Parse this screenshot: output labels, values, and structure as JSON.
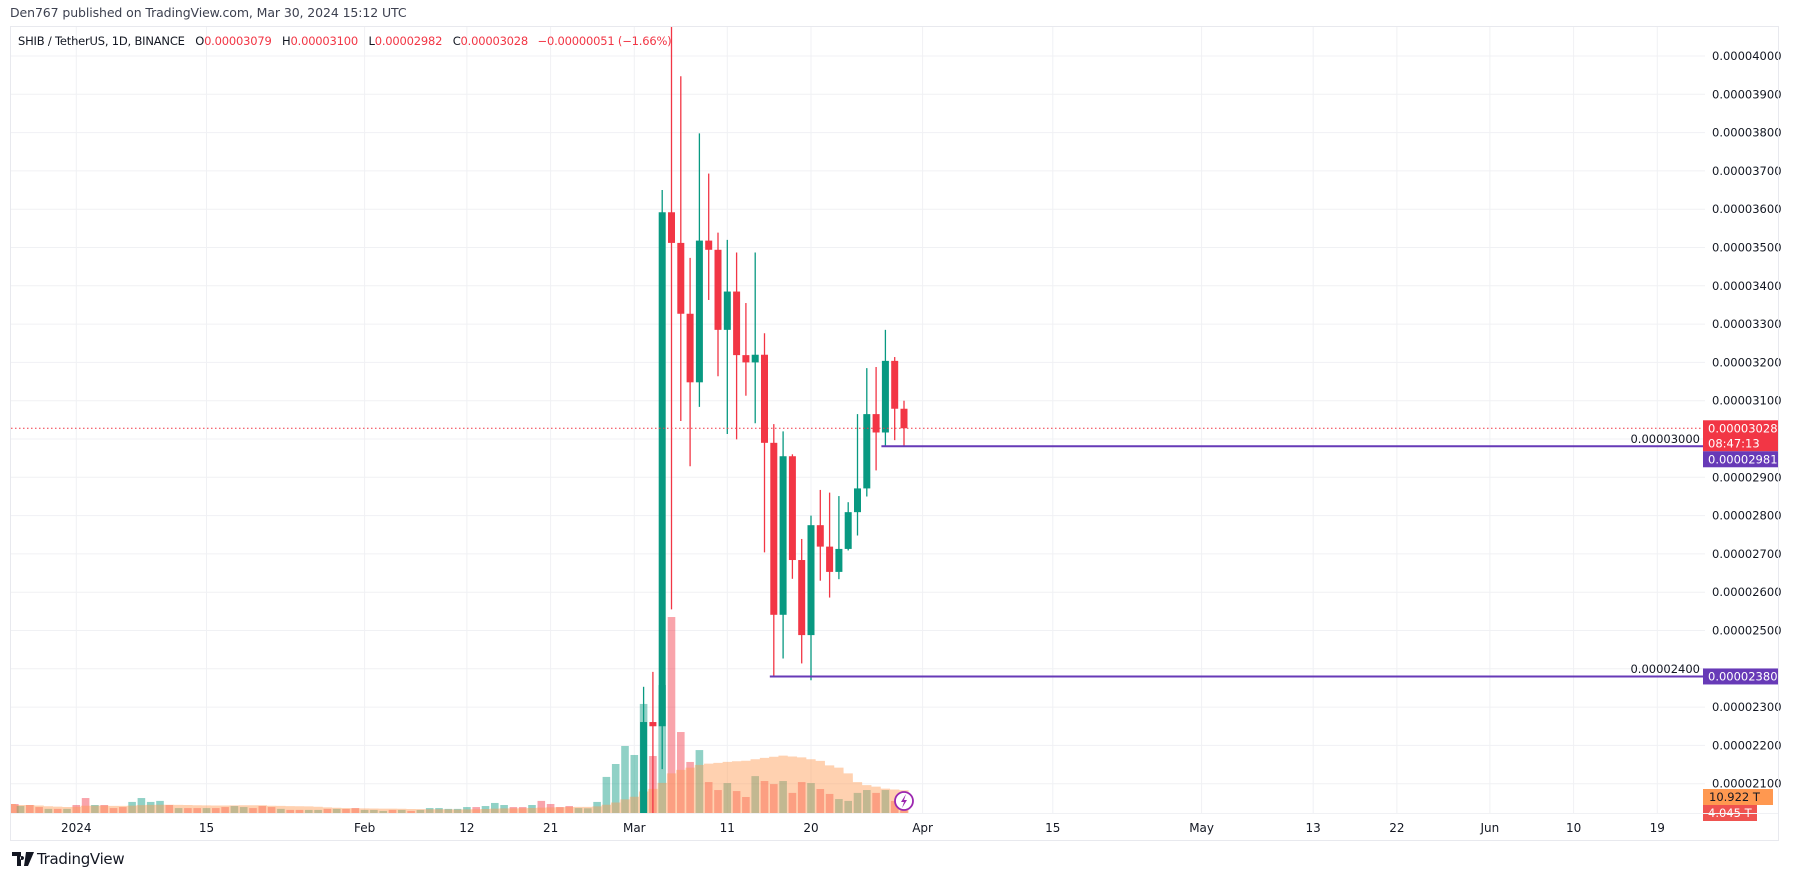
{
  "header": {
    "published": "Den767 published on TradingView.com, Mar 30, 2024 15:12 UTC"
  },
  "legend": {
    "symbol": "SHIB / TetherUS, 1D, BINANCE",
    "o_label": "O",
    "o": "0.00003079",
    "h_label": "H",
    "h": "0.00003100",
    "l_label": "L",
    "l": "0.00002982",
    "c_label": "C",
    "c": "0.00003028",
    "change": "−0.00000051 (−1.66%)"
  },
  "footer": {
    "logo_text": "TradingView"
  },
  "colors": {
    "up": "#089981",
    "down": "#f23645",
    "line": "#673ab7",
    "volume_ma": "#ff9850",
    "grid": "#f0f1f4"
  },
  "chart_data": {
    "type": "candlestick",
    "price_axis": {
      "range": [
        2.05e-05,
        4.08e-05
      ],
      "ticks": [
        "0.00004000",
        "0.00003900",
        "0.00003800",
        "0.00003700",
        "0.00003600",
        "0.00003500",
        "0.00003400",
        "0.00003300",
        "0.00003200",
        "0.00003100",
        "0.00003000",
        "0.00002900",
        "0.00002800",
        "0.00002700",
        "0.00002600",
        "0.00002500",
        "0.00002400",
        "0.00002300",
        "0.00002200",
        "0.00002100"
      ]
    },
    "time_axis": [
      {
        "label": "2024",
        "date": "2024-01-01"
      },
      {
        "label": "15",
        "date": "2024-01-15"
      },
      {
        "label": "Feb",
        "date": "2024-02-01"
      },
      {
        "label": "12",
        "date": "2024-02-12"
      },
      {
        "label": "21",
        "date": "2024-02-21"
      },
      {
        "label": "Mar",
        "date": "2024-03-01"
      },
      {
        "label": "11",
        "date": "2024-03-11"
      },
      {
        "label": "20",
        "date": "2024-03-20"
      },
      {
        "label": "Apr",
        "date": "2024-04-01"
      },
      {
        "label": "15",
        "date": "2024-04-15"
      },
      {
        "label": "May",
        "date": "2024-05-01"
      },
      {
        "label": "13",
        "date": "2024-05-13"
      },
      {
        "label": "22",
        "date": "2024-05-22"
      },
      {
        "label": "Jun",
        "date": "2024-06-01"
      },
      {
        "label": "10",
        "date": "2024-06-10"
      },
      {
        "label": "19",
        "date": "2024-06-19"
      }
    ],
    "candles": [
      [
        "2024-03-02",
        1.65e-05,
        2.353e-05,
        1.6e-05,
        2.261e-05
      ],
      [
        "2024-03-03",
        2.261e-05,
        2.392e-05,
        2e-05,
        2.25e-05
      ],
      [
        "2024-03-04",
        2.25e-05,
        3.65e-05,
        2.138e-05,
        3.592e-05
      ],
      [
        "2024-03-05",
        3.592e-05,
        4.567e-05,
        2.555e-05,
        3.512e-05
      ],
      [
        "2024-03-06",
        3.512e-05,
        3.947e-05,
        3.047e-05,
        3.327e-05
      ],
      [
        "2024-03-07",
        3.327e-05,
        3.473e-05,
        2.929e-05,
        3.148e-05
      ],
      [
        "2024-03-08",
        3.148e-05,
        3.798e-05,
        3.084e-05,
        3.518e-05
      ],
      [
        "2024-03-09",
        3.518e-05,
        3.693e-05,
        3.363e-05,
        3.494e-05
      ],
      [
        "2024-03-10",
        3.494e-05,
        3.539e-05,
        3.164e-05,
        3.285e-05
      ],
      [
        "2024-03-11",
        3.285e-05,
        3.52e-05,
        3.013e-05,
        3.385e-05
      ],
      [
        "2024-03-12",
        3.385e-05,
        3.487e-05,
        2.999e-05,
        3.219e-05
      ],
      [
        "2024-03-13",
        3.219e-05,
        3.355e-05,
        3.113e-05,
        3.2e-05
      ],
      [
        "2024-03-14",
        3.2e-05,
        3.487e-05,
        3.041e-05,
        3.22e-05
      ],
      [
        "2024-03-15",
        3.22e-05,
        3.276e-05,
        2.704e-05,
        2.99e-05
      ],
      [
        "2024-03-16",
        2.99e-05,
        3.039e-05,
        2.38e-05,
        2.541e-05
      ],
      [
        "2024-03-17",
        2.541e-05,
        3.02e-05,
        2.427e-05,
        2.955e-05
      ],
      [
        "2024-03-18",
        2.955e-05,
        2.96e-05,
        2.635e-05,
        2.684e-05
      ],
      [
        "2024-03-19",
        2.684e-05,
        2.739e-05,
        2.414e-05,
        2.488e-05
      ],
      [
        "2024-03-20",
        2.488e-05,
        2.8e-05,
        2.37e-05,
        2.775e-05
      ],
      [
        "2024-03-21",
        2.775e-05,
        2.867e-05,
        2.63e-05,
        2.719e-05
      ],
      [
        "2024-03-22",
        2.719e-05,
        2.86e-05,
        2.586e-05,
        2.653e-05
      ],
      [
        "2024-03-23",
        2.653e-05,
        2.851e-05,
        2.634e-05,
        2.713e-05
      ],
      [
        "2024-03-24",
        2.713e-05,
        2.835e-05,
        2.709e-05,
        2.809e-05
      ],
      [
        "2024-03-25",
        2.809e-05,
        3.065e-05,
        2.748e-05,
        2.871e-05
      ],
      [
        "2024-03-26",
        2.871e-05,
        3.185e-05,
        2.85e-05,
        3.065e-05
      ],
      [
        "2024-03-27",
        3.065e-05,
        3.188e-05,
        2.918e-05,
        3.017e-05
      ],
      [
        "2024-03-28",
        3.017e-05,
        3.285e-05,
        2.981e-05,
        3.204e-05
      ],
      [
        "2024-03-29",
        3.204e-05,
        3.214e-05,
        2.997e-05,
        3.079e-05
      ],
      [
        "2024-03-30",
        3.079e-05,
        3.1e-05,
        2.982e-05,
        3.028e-05
      ]
    ],
    "volume_unit": "T",
    "volume": [
      [
        "2023-12-25",
        4.4,
        "r"
      ],
      [
        "2023-12-26",
        3.4,
        "g"
      ],
      [
        "2023-12-27",
        3.9,
        "r"
      ],
      [
        "2023-12-28",
        2.9,
        "r"
      ],
      [
        "2023-12-29",
        2.0,
        "g"
      ],
      [
        "2023-12-30",
        2.0,
        "r"
      ],
      [
        "2023-12-31",
        2.0,
        "g"
      ],
      [
        "2024-01-01",
        3.9,
        "r"
      ],
      [
        "2024-01-02",
        7.3,
        "r"
      ],
      [
        "2024-01-03",
        3.9,
        "g"
      ],
      [
        "2024-01-04",
        3.9,
        "r"
      ],
      [
        "2024-01-05",
        2.4,
        "r"
      ],
      [
        "2024-01-06",
        2.9,
        "r"
      ],
      [
        "2024-01-07",
        5.4,
        "g"
      ],
      [
        "2024-01-08",
        7.3,
        "g"
      ],
      [
        "2024-01-09",
        5.4,
        "g"
      ],
      [
        "2024-01-10",
        5.9,
        "g"
      ],
      [
        "2024-01-11",
        3.9,
        "r"
      ],
      [
        "2024-01-12",
        2.4,
        "g"
      ],
      [
        "2024-01-13",
        2.4,
        "r"
      ],
      [
        "2024-01-14",
        2.4,
        "r"
      ],
      [
        "2024-01-15",
        2.4,
        "g"
      ],
      [
        "2024-01-16",
        2.4,
        "r"
      ],
      [
        "2024-01-17",
        2.9,
        "r"
      ],
      [
        "2024-01-18",
        3.4,
        "g"
      ],
      [
        "2024-01-19",
        2.9,
        "g"
      ],
      [
        "2024-01-20",
        2.4,
        "r"
      ],
      [
        "2024-01-21",
        3.4,
        "r"
      ],
      [
        "2024-01-22",
        2.9,
        "r"
      ],
      [
        "2024-01-23",
        2.0,
        "g"
      ],
      [
        "2024-01-24",
        1.5,
        "r"
      ],
      [
        "2024-01-25",
        1.5,
        "r"
      ],
      [
        "2024-01-26",
        1.5,
        "g"
      ],
      [
        "2024-01-27",
        1.5,
        "g"
      ],
      [
        "2024-01-28",
        2.0,
        "r"
      ],
      [
        "2024-01-29",
        2.0,
        "g"
      ],
      [
        "2024-01-30",
        2.0,
        "r"
      ],
      [
        "2024-01-31",
        2.4,
        "r"
      ],
      [
        "2024-02-01",
        1.5,
        "g"
      ],
      [
        "2024-02-02",
        1.5,
        "g"
      ],
      [
        "2024-02-03",
        1.0,
        "g"
      ],
      [
        "2024-02-04",
        1.5,
        "r"
      ],
      [
        "2024-02-05",
        1.5,
        "g"
      ],
      [
        "2024-02-06",
        1.0,
        "r"
      ],
      [
        "2024-02-07",
        1.5,
        "g"
      ],
      [
        "2024-02-08",
        2.4,
        "g"
      ],
      [
        "2024-02-09",
        2.4,
        "g"
      ],
      [
        "2024-02-10",
        2.0,
        "g"
      ],
      [
        "2024-02-11",
        2.0,
        "g"
      ],
      [
        "2024-02-12",
        2.9,
        "g"
      ],
      [
        "2024-02-13",
        2.9,
        "r"
      ],
      [
        "2024-02-14",
        3.4,
        "g"
      ],
      [
        "2024-02-15",
        4.9,
        "g"
      ],
      [
        "2024-02-16",
        3.9,
        "g"
      ],
      [
        "2024-02-17",
        2.9,
        "r"
      ],
      [
        "2024-02-18",
        2.9,
        "r"
      ],
      [
        "2024-02-19",
        3.9,
        "g"
      ],
      [
        "2024-02-20",
        5.9,
        "r"
      ],
      [
        "2024-02-21",
        4.4,
        "r"
      ],
      [
        "2024-02-22",
        2.9,
        "r"
      ],
      [
        "2024-02-23",
        3.4,
        "r"
      ],
      [
        "2024-02-24",
        2.4,
        "g"
      ],
      [
        "2024-02-25",
        2.3,
        "g"
      ],
      [
        "2024-02-26",
        5.4,
        "g"
      ],
      [
        "2024-02-27",
        17.6,
        "g"
      ],
      [
        "2024-02-28",
        23.9,
        "g"
      ],
      [
        "2024-02-29",
        32.7,
        "g"
      ],
      [
        "2024-03-01",
        28.3,
        "g"
      ],
      [
        "2024-03-02",
        53.2,
        "g"
      ],
      [
        "2024-03-03",
        27.8,
        "r"
      ],
      [
        "2024-03-04",
        62.4,
        "g"
      ],
      [
        "2024-03-05",
        95.6,
        "r"
      ],
      [
        "2024-03-06",
        39.5,
        "r"
      ],
      [
        "2024-03-07",
        24.9,
        "r"
      ],
      [
        "2024-03-08",
        30.7,
        "g"
      ],
      [
        "2024-03-09",
        15.1,
        "r"
      ],
      [
        "2024-03-10",
        11.2,
        "r"
      ],
      [
        "2024-03-11",
        14.6,
        "g"
      ],
      [
        "2024-03-12",
        10.7,
        "r"
      ],
      [
        "2024-03-13",
        7.8,
        "r"
      ],
      [
        "2024-03-14",
        18.0,
        "g"
      ],
      [
        "2024-03-15",
        15.6,
        "r"
      ],
      [
        "2024-03-16",
        14.1,
        "r"
      ],
      [
        "2024-03-17",
        15.6,
        "g"
      ],
      [
        "2024-03-18",
        9.8,
        "r"
      ],
      [
        "2024-03-19",
        15.1,
        "r"
      ],
      [
        "2024-03-20",
        14.6,
        "g"
      ],
      [
        "2024-03-21",
        11.7,
        "r"
      ],
      [
        "2024-03-22",
        9.3,
        "r"
      ],
      [
        "2024-03-23",
        6.8,
        "g"
      ],
      [
        "2024-03-24",
        5.9,
        "g"
      ],
      [
        "2024-03-25",
        9.8,
        "g"
      ],
      [
        "2024-03-26",
        11.2,
        "g"
      ],
      [
        "2024-03-27",
        9.8,
        "r"
      ],
      [
        "2024-03-28",
        11.2,
        "g"
      ],
      [
        "2024-03-29",
        5.9,
        "r"
      ],
      [
        "2024-03-30",
        4.045,
        "r"
      ]
    ],
    "volume_ma_length": 20,
    "horizontal_lines": [
      {
        "price": 2.981e-05,
        "from": "2024-03-28",
        "label": "0.00002981"
      },
      {
        "price": 2.38e-05,
        "from": "2024-03-16",
        "label": "0.00002380"
      }
    ],
    "last_price": {
      "price": 3.028e-05,
      "label": "0.00003028",
      "countdown": "08:47:13"
    },
    "volume_labels": {
      "ma": "10.922 T",
      "current": "4.045 T"
    },
    "event_marker": {
      "date": "2024-03-30",
      "icon": "lightning-icon"
    }
  }
}
